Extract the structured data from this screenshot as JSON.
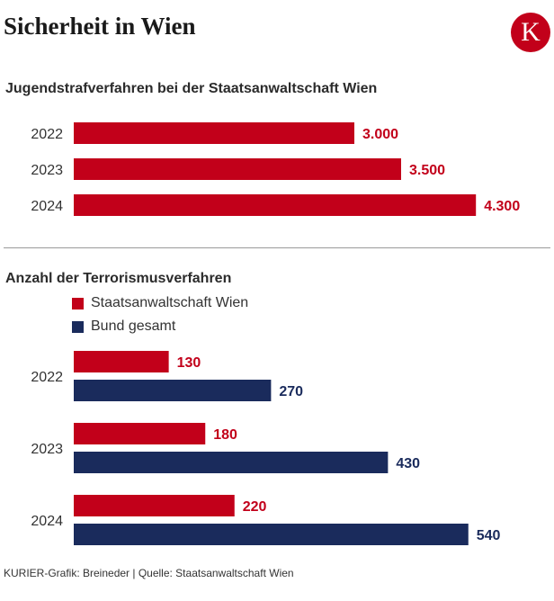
{
  "header": {
    "title": "Sicherheit in Wien",
    "logo_letter": "K"
  },
  "colors": {
    "red": "#c2001a",
    "navy": "#1a2b5c",
    "label_text": "#333333"
  },
  "chart_data": [
    {
      "type": "bar",
      "orientation": "horizontal",
      "title": "Jugendstrafverfahren bei der Staatsanwaltschaft Wien",
      "categories": [
        "2022",
        "2023",
        "2024"
      ],
      "series": [
        {
          "values": [
            3000,
            3500,
            4300
          ],
          "labels": [
            "3.000",
            "3.500",
            "4.300"
          ],
          "color": "#c2001a"
        }
      ],
      "xlim": [
        0,
        5000
      ],
      "grid": false,
      "legend": "none"
    },
    {
      "type": "bar",
      "orientation": "horizontal",
      "title": "Anzahl der Terrorismusverfahren",
      "categories": [
        "2022",
        "2023",
        "2024"
      ],
      "series": [
        {
          "name": "Staatsanwaltschaft Wien",
          "values": [
            130,
            180,
            220
          ],
          "labels": [
            "130",
            "180",
            "220"
          ],
          "color": "#c2001a"
        },
        {
          "name": "Bund gesamt",
          "values": [
            270,
            430,
            540
          ],
          "labels": [
            "270",
            "430",
            "540"
          ],
          "color": "#1a2b5c"
        }
      ],
      "xlim": [
        0,
        640
      ],
      "grid": false,
      "legend": "top-left"
    }
  ],
  "footer": {
    "credit": "KURIER-Grafik: Breineder | Quelle: Staatsanwaltschaft Wien"
  }
}
